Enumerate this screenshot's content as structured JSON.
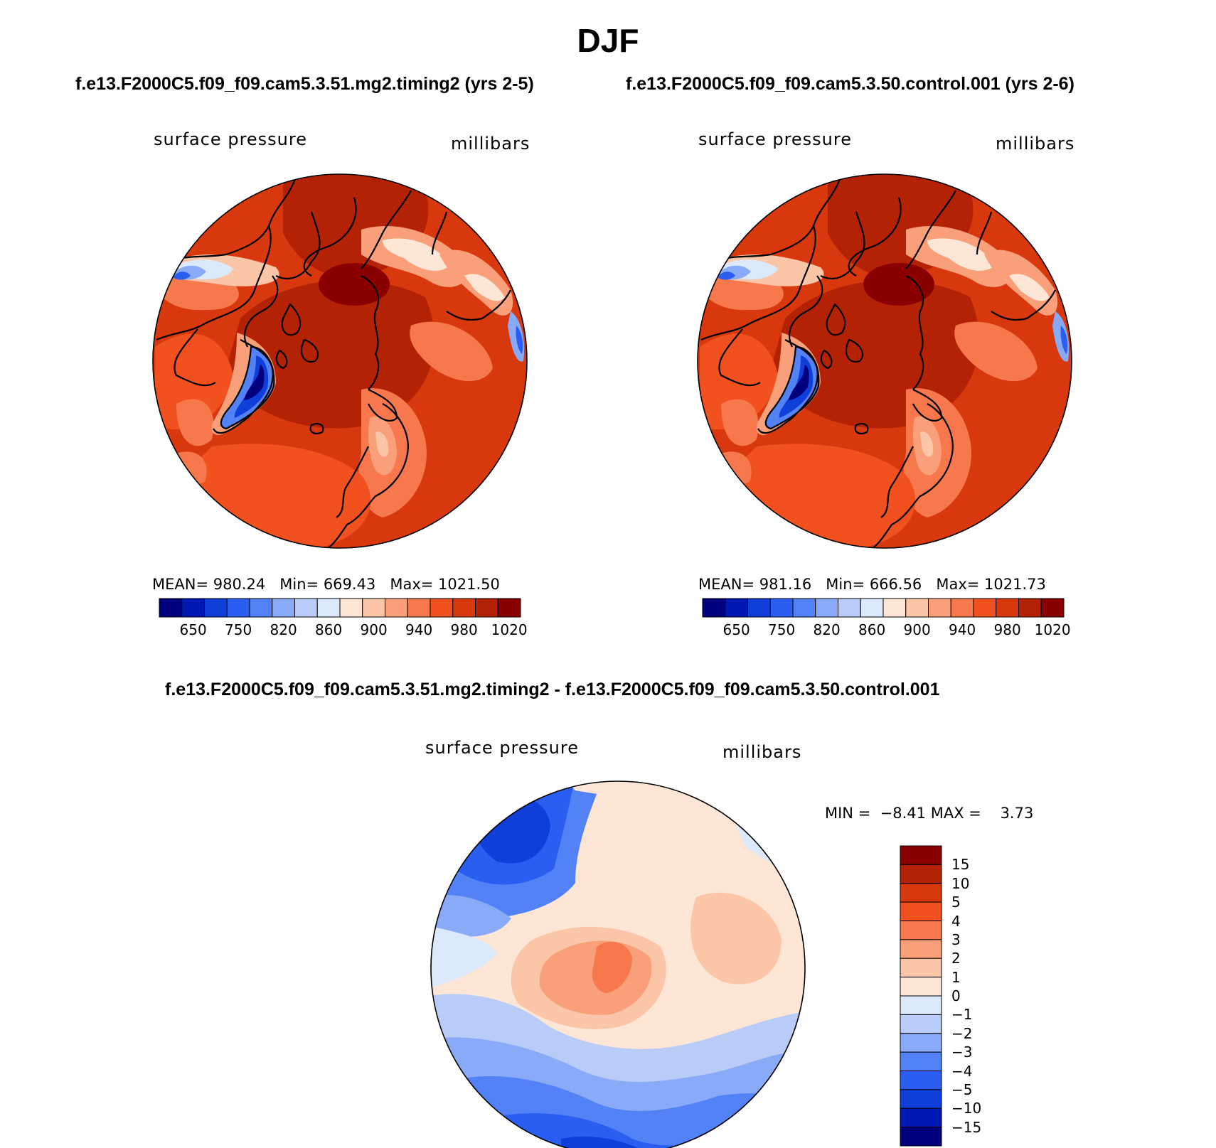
{
  "title": "DJF",
  "panels": {
    "left": {
      "case_title": "f.e13.F2000C5.f09_f09.cam5.3.51.mg2.timing2 (yrs 2-5)",
      "variable": "surface pressure",
      "units": "millibars",
      "stats": {
        "mean_label": "MEAN=",
        "mean": "980.24",
        "min_label": "Min=",
        "min": "669.43",
        "max_label": "Max=",
        "max": "1021.50"
      }
    },
    "right": {
      "case_title": "f.e13.F2000C5.f09_f09.cam5.3.50.control.001 (yrs 2-6)",
      "variable": "surface pressure",
      "units": "millibars",
      "stats": {
        "mean_label": "MEAN=",
        "mean": "981.16",
        "min_label": "Min=",
        "min": "666.56",
        "max_label": "Max=",
        "max": "1021.73"
      }
    },
    "diff": {
      "case_title": "f.e13.F2000C5.f09_f09.cam5.3.51.mg2.timing2 - f.e13.F2000C5.f09_f09.cam5.3.50.control.001",
      "variable": "surface pressure",
      "units": "millibars",
      "stats": {
        "min_label": "MIN =",
        "min": "−8.41",
        "max_label": "MAX =",
        "max": "3.73"
      }
    }
  },
  "abs_colorbar": {
    "colors": [
      "#00007f",
      "#0019b4",
      "#0f3ed8",
      "#2a5ef0",
      "#5282f5",
      "#88aaf7",
      "#b9ccf8",
      "#dce9fa",
      "#fde6d6",
      "#fbc6a8",
      "#f9a07a",
      "#f6784c",
      "#f0511e",
      "#d8380e",
      "#b32205",
      "#8a0000"
    ],
    "labels": [
      "650",
      "750",
      "820",
      "860",
      "900",
      "940",
      "980",
      "1020"
    ]
  },
  "diff_colorbar": {
    "colors": [
      "#8a0000",
      "#b32205",
      "#d8380e",
      "#f0511e",
      "#f6784c",
      "#f9a07a",
      "#fbc6a8",
      "#fde6d6",
      "#dce9fa",
      "#b9ccf8",
      "#88aaf7",
      "#5282f5",
      "#2a5ef0",
      "#0f3ed8",
      "#0019b4",
      "#00007f"
    ],
    "labels": [
      "15",
      "10",
      "5",
      "4",
      "3",
      "2",
      "1",
      "0",
      "−1",
      "−2",
      "−3",
      "−4",
      "−5",
      "−10",
      "−15"
    ]
  }
}
